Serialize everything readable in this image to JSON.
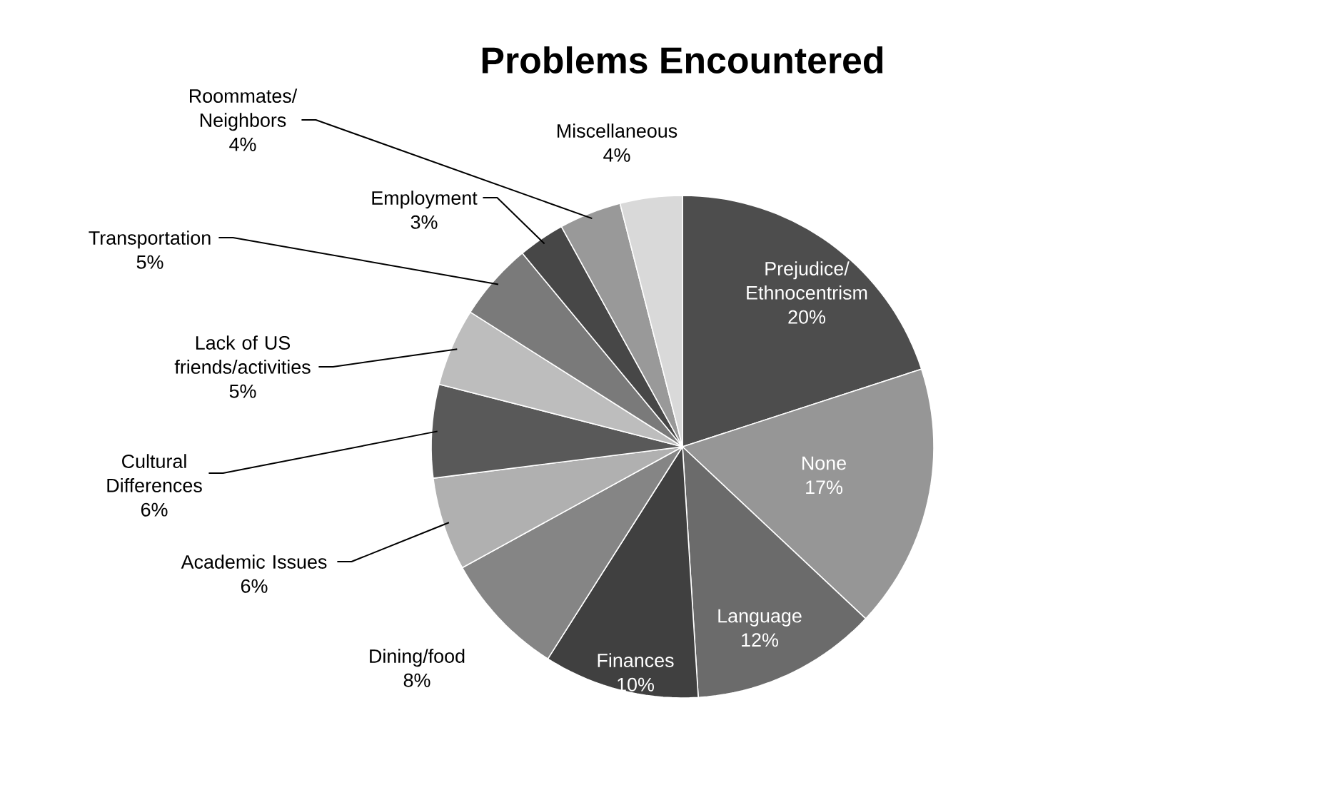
{
  "chart_data": {
    "type": "pie",
    "title": "Problems Encountered",
    "categories": [
      "Prejudice/ Ethnocentrism",
      "None",
      "Language",
      "Finances",
      "Dining/food",
      "Academic Issues",
      "Cultural Differences",
      "Lack of US friends/activities",
      "Transportation",
      "Employment",
      "Roommates/ Neighbors",
      "Miscellaneous"
    ],
    "values": [
      20,
      17,
      12,
      10,
      8,
      6,
      6,
      5,
      5,
      3,
      4,
      4
    ],
    "value_labels": [
      "20%",
      "17%",
      "12%",
      "10%",
      "8%",
      "6%",
      "6%",
      "5%",
      "5%",
      "3%",
      "4%",
      "4%"
    ],
    "colors": [
      "#4d4d4d",
      "#969696",
      "#6b6b6b",
      "#404040",
      "#858585",
      "#b0b0b0",
      "#595959",
      "#bdbdbd",
      "#7a7a7a",
      "#474747",
      "#999999",
      "#d9d9d9"
    ],
    "legend": false
  }
}
